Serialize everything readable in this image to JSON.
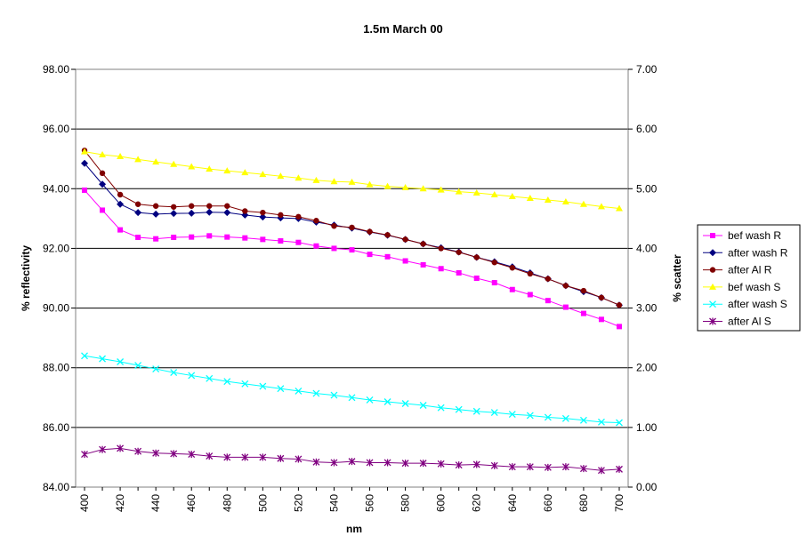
{
  "chart_data": {
    "type": "line",
    "title": "1.5m March 00",
    "xlabel": "nm",
    "ylabel": "% reflectivity",
    "y2label": "% scatter",
    "x": [
      400,
      410,
      420,
      430,
      440,
      450,
      460,
      470,
      480,
      490,
      500,
      510,
      520,
      530,
      540,
      550,
      560,
      570,
      580,
      590,
      600,
      610,
      620,
      630,
      640,
      650,
      660,
      670,
      680,
      690,
      700
    ],
    "x_tick_labels": [
      "400",
      "420",
      "440",
      "460",
      "480",
      "500",
      "520",
      "540",
      "560",
      "580",
      "600",
      "620",
      "640",
      "660",
      "680",
      "700"
    ],
    "ylim": [
      84,
      98
    ],
    "y_tick_labels": [
      "84.00",
      "86.00",
      "88.00",
      "90.00",
      "92.00",
      "94.00",
      "96.00",
      "98.00"
    ],
    "y2lim": [
      0,
      7
    ],
    "y2_tick_labels": [
      "0.00",
      "1.00",
      "2.00",
      "3.00",
      "4.00",
      "5.00",
      "6.00",
      "7.00"
    ],
    "grid": "horizontal major gridlines",
    "legend_position": "right",
    "series": [
      {
        "name": "bef wash R",
        "axis": "left",
        "color": "#FF00FF",
        "marker": "square",
        "values": [
          93.95,
          93.28,
          92.62,
          92.37,
          92.32,
          92.37,
          92.38,
          92.42,
          92.38,
          92.35,
          92.3,
          92.25,
          92.2,
          92.08,
          92.0,
          91.95,
          91.8,
          91.72,
          91.58,
          91.45,
          91.32,
          91.18,
          91.0,
          90.85,
          90.62,
          90.45,
          90.25,
          90.03,
          89.82,
          89.62,
          89.38
        ]
      },
      {
        "name": "after wash R",
        "axis": "left",
        "color": "#000080",
        "marker": "diamond",
        "values": [
          94.85,
          94.15,
          93.48,
          93.2,
          93.15,
          93.17,
          93.18,
          93.21,
          93.2,
          93.12,
          93.05,
          93.02,
          93.0,
          92.88,
          92.78,
          92.68,
          92.55,
          92.44,
          92.3,
          92.15,
          92.02,
          91.88,
          91.7,
          91.55,
          91.38,
          91.18,
          90.98,
          90.75,
          90.55,
          90.35,
          90.1
        ]
      },
      {
        "name": "after Al R",
        "axis": "left",
        "color": "#800000",
        "marker": "circle",
        "values": [
          95.28,
          94.52,
          93.8,
          93.48,
          93.42,
          93.39,
          93.42,
          93.42,
          93.42,
          93.25,
          93.2,
          93.12,
          93.06,
          92.93,
          92.75,
          92.7,
          92.56,
          92.45,
          92.3,
          92.15,
          92.0,
          91.87,
          91.7,
          91.53,
          91.35,
          91.15,
          90.98,
          90.75,
          90.58,
          90.35,
          90.1
        ]
      },
      {
        "name": "bef wash S",
        "axis": "right",
        "color": "#FFFF00",
        "marker": "triangle",
        "values": [
          5.62,
          5.57,
          5.54,
          5.49,
          5.45,
          5.41,
          5.37,
          5.33,
          5.3,
          5.27,
          5.24,
          5.21,
          5.18,
          5.14,
          5.12,
          5.11,
          5.07,
          5.04,
          5.02,
          5.0,
          4.98,
          4.95,
          4.93,
          4.9,
          4.87,
          4.84,
          4.81,
          4.78,
          4.74,
          4.7,
          4.67
        ]
      },
      {
        "name": "after wash S",
        "axis": "right",
        "color": "#00FFFF",
        "marker": "x",
        "values": [
          2.2,
          2.15,
          2.1,
          2.04,
          1.98,
          1.92,
          1.87,
          1.82,
          1.77,
          1.73,
          1.69,
          1.65,
          1.61,
          1.57,
          1.54,
          1.5,
          1.46,
          1.43,
          1.4,
          1.37,
          1.33,
          1.3,
          1.27,
          1.25,
          1.22,
          1.2,
          1.17,
          1.15,
          1.12,
          1.09,
          1.08
        ]
      },
      {
        "name": "after Al S",
        "axis": "right",
        "color": "#800080",
        "marker": "star",
        "values": [
          0.55,
          0.63,
          0.65,
          0.6,
          0.57,
          0.56,
          0.55,
          0.52,
          0.5,
          0.5,
          0.5,
          0.48,
          0.47,
          0.42,
          0.41,
          0.43,
          0.41,
          0.41,
          0.4,
          0.4,
          0.39,
          0.37,
          0.38,
          0.36,
          0.34,
          0.34,
          0.33,
          0.34,
          0.31,
          0.28,
          0.3
        ]
      }
    ]
  }
}
